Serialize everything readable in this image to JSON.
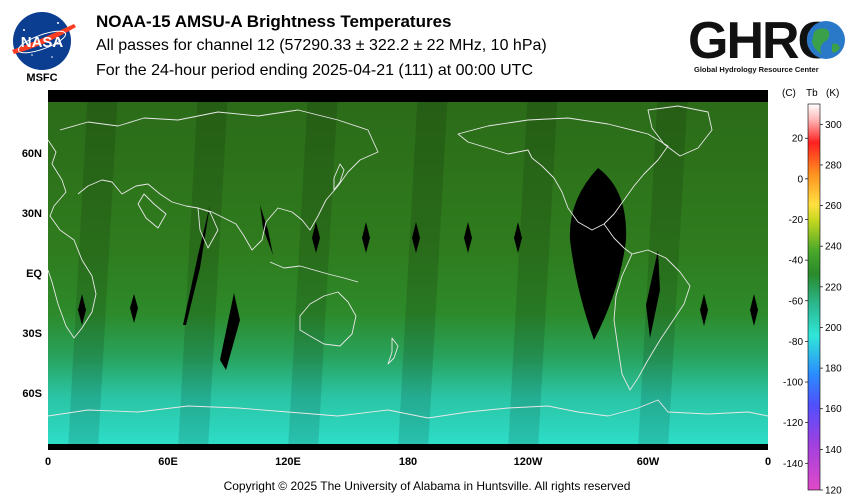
{
  "header": {
    "title": "NOAA-15 AMSU-A Brightness Temperatures",
    "subtitle": "All passes for channel 12 (57290.33 ± 322.2 ± 22 MHz, 10 hPa)",
    "period": "For the 24-hour period ending 2025-04-21 (111) at 00:00 UTC"
  },
  "logos": {
    "nasa_text": "NASA",
    "msfc_text": "MSFC",
    "ghrc_text": "GHRC",
    "ghrc_sub": "Global Hydrology Resource Center"
  },
  "map": {
    "lat_labels": [
      "60N",
      "30N",
      "EQ",
      "30S",
      "60S"
    ],
    "lon_labels": [
      "0",
      "60E",
      "120E",
      "180",
      "120W",
      "60W",
      "0"
    ]
  },
  "colorbar": {
    "header_c": "(C)",
    "header_tb": "Tb",
    "header_k": "(K)",
    "celsius_ticks": [
      "20",
      "0",
      "-20",
      "-40",
      "-60",
      "-80",
      "-100",
      "-120",
      "-140"
    ],
    "kelvin_ticks": [
      "300",
      "280",
      "260",
      "240",
      "220",
      "200",
      "180",
      "160",
      "140",
      "120"
    ]
  },
  "footer": {
    "copyright": "Copyright © 2025 The University of Alabama in Huntsville.  All rights reserved"
  },
  "colors": {
    "map_green": "#2f7a1e",
    "map_cyan": "#2ad6c2",
    "no_data": "#000000",
    "coastline": "#e8e8e8"
  }
}
